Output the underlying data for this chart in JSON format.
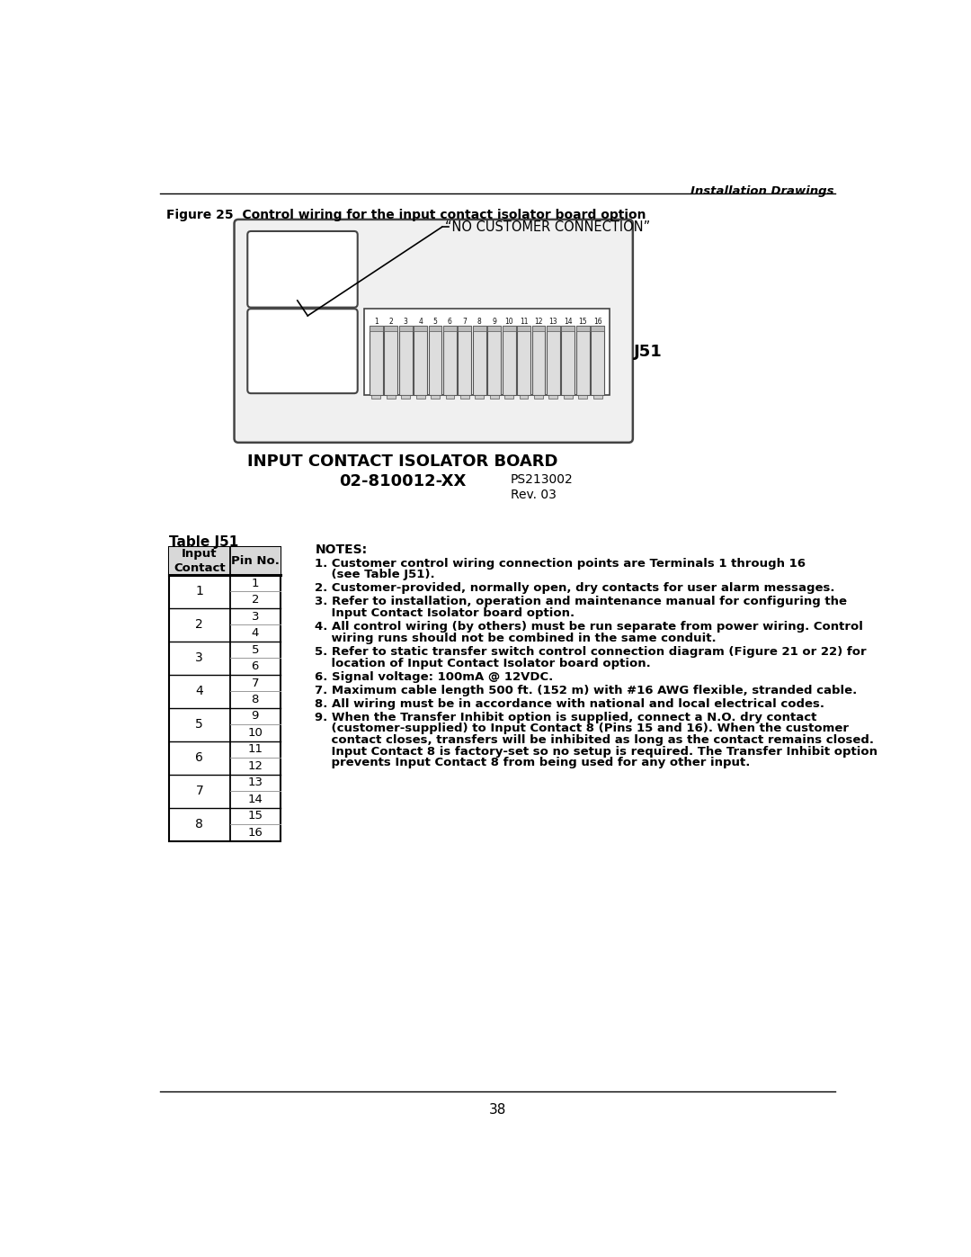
{
  "page_title_right": "Installation Drawings",
  "figure_caption": "Figure 25  Control wiring for the input contact isolator board option",
  "no_customer_text": "“NO CUSTOMER CONNECTION”",
  "board_label1": "INPUT CONTACT ISOLATOR BOARD",
  "board_label2": "02-810012-XX",
  "board_label3": "PS213002",
  "board_label4": "Rev. 03",
  "j51_label": "J51",
  "pin_numbers": [
    "1",
    "2",
    "3",
    "4",
    "5",
    "6",
    "7",
    "8",
    "9",
    "10",
    "11",
    "12",
    "13",
    "14",
    "15",
    "16"
  ],
  "table_title": "Table J51",
  "table_header1": "Input\nContact",
  "table_header2": "Pin No.",
  "table_data": [
    [
      "1",
      [
        "1",
        "2"
      ]
    ],
    [
      "2",
      [
        "3",
        "4"
      ]
    ],
    [
      "3",
      [
        "5",
        "6"
      ]
    ],
    [
      "4",
      [
        "7",
        "8"
      ]
    ],
    [
      "5",
      [
        "9",
        "10"
      ]
    ],
    [
      "6",
      [
        "11",
        "12"
      ]
    ],
    [
      "7",
      [
        "13",
        "14"
      ]
    ],
    [
      "8",
      [
        "15",
        "16"
      ]
    ]
  ],
  "notes_title": "NOTES:",
  "notes": [
    [
      "1. Customer control wiring connection points are Terminals 1 through 16",
      "    (see Table J51)."
    ],
    [
      "2. Customer-provided, normally open, dry contacts for user alarm messages."
    ],
    [
      "3. Refer to installation, operation and maintenance manual for configuring the",
      "    Input Contact Isolator board option."
    ],
    [
      "4. All control wiring (by others) must be run separate from power wiring. Control",
      "    wiring runs should not be combined in the same conduit."
    ],
    [
      "5. Refer to static transfer switch control connection diagram (Figure 21 or 22) for",
      "    location of Input Contact Isolator board option."
    ],
    [
      "6. Signal voltage: 100mA @ 12VDC."
    ],
    [
      "7. Maximum cable length 500 ft. (152 m) with #16 AWG flexible, stranded cable."
    ],
    [
      "8. All wiring must be in accordance with national and local electrical codes."
    ],
    [
      "9. When the Transfer Inhibit option is supplied, connect a N.O. dry contact",
      "    (customer-supplied) to Input Contact 8 (Pins 15 and 16). When the customer",
      "    contact closes, transfers will be inhibited as long as the contact remains closed.",
      "    Input Contact 8 is factory-set so no setup is required. The Transfer Inhibit option",
      "    prevents Input Contact 8 from being used for any other input."
    ]
  ],
  "page_number": "38",
  "bg_color": "#ffffff"
}
